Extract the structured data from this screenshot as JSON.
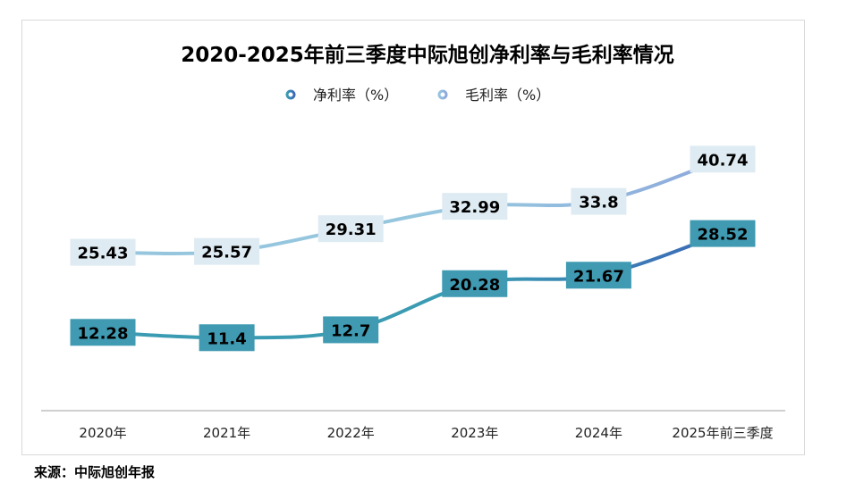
{
  "chart_data": {
    "type": "line",
    "title": "2020-2025年前三季度中际旭创净利率与毛利率情况",
    "categories": [
      "2020年",
      "2021年",
      "2022年",
      "2023年",
      "2024年",
      "2025年前三季度"
    ],
    "series": [
      {
        "name": "净利率（%）",
        "values": [
          12.28,
          11.4,
          12.7,
          20.28,
          21.67,
          28.52
        ],
        "color_start": "#3a9bb2",
        "color_end": "#3d68b8",
        "label_bg": "#3f9ab2"
      },
      {
        "name": "毛利率（%）",
        "values": [
          25.43,
          25.57,
          29.31,
          32.99,
          33.8,
          40.74
        ],
        "color_start": "#95c6de",
        "color_end": "#8ea8dc",
        "label_bg": "#deebf2"
      }
    ],
    "labels": {
      "net": [
        "12.28",
        "11.4",
        "12.7",
        "20.28",
        "21.67",
        "28.52"
      ],
      "gross": [
        "25.43",
        "25.57",
        "29.31",
        "32.99",
        "33.8",
        "40.74"
      ]
    },
    "legend_placement": "top-center",
    "grid": false
  },
  "source": "来源：中际旭创年报"
}
